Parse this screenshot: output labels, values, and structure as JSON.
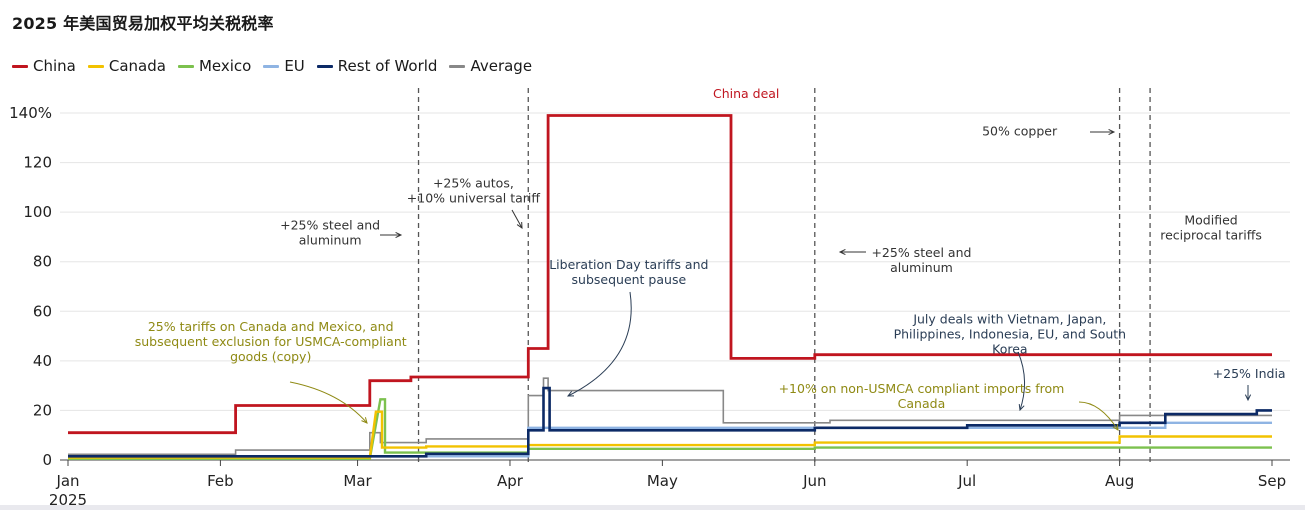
{
  "title": "2025 年美国贸易加权平均关税税率",
  "colors": {
    "china": "#c0151f",
    "canada": "#f2c200",
    "mexico": "#7cc14e",
    "eu": "#8fb4e3",
    "rest": "#0c2a66",
    "average": "#888888",
    "annotation_dark": "#2a3d55",
    "annotation_olive": "#8f8a14",
    "annotation_gray": "#333333",
    "grid": "#e5e5e5"
  },
  "legend": [
    {
      "label": "China",
      "color": "#c0151f"
    },
    {
      "label": "Canada",
      "color": "#f2c200"
    },
    {
      "label": "Mexico",
      "color": "#7cc14e"
    },
    {
      "label": "EU",
      "color": "#8fb4e3"
    },
    {
      "label": "Rest of World",
      "color": "#0c2a66"
    },
    {
      "label": "Average",
      "color": "#888888"
    }
  ],
  "chart_data": {
    "type": "line",
    "step": true,
    "title": "2025 年美国贸易加权平均关税税率",
    "xlabel": "",
    "ylabel": "",
    "xlim": [
      0,
      7.9
    ],
    "ylim": [
      0,
      140
    ],
    "x_unit": "months since Jan 1, 2025",
    "x_ticks": [
      {
        "value": 0,
        "label": "Jan",
        "sublabel": "2025"
      },
      {
        "value": 1,
        "label": "Feb"
      },
      {
        "value": 1.9,
        "label": "Mar"
      },
      {
        "value": 2.9,
        "label": "Apr"
      },
      {
        "value": 3.9,
        "label": "May"
      },
      {
        "value": 4.9,
        "label": "Jun"
      },
      {
        "value": 5.9,
        "label": "Jul"
      },
      {
        "value": 6.9,
        "label": "Aug"
      },
      {
        "value": 7.9,
        "label": "Sep"
      }
    ],
    "y_ticks": [
      {
        "value": 0,
        "label": "0"
      },
      {
        "value": 20,
        "label": "20"
      },
      {
        "value": 40,
        "label": "40"
      },
      {
        "value": 60,
        "label": "60"
      },
      {
        "value": 80,
        "label": "80"
      },
      {
        "value": 100,
        "label": "100"
      },
      {
        "value": 120,
        "label": "120"
      },
      {
        "value": 140,
        "label": "140%"
      }
    ],
    "grid": true,
    "series": [
      {
        "name": "Average",
        "key": "average",
        "width": 1.6,
        "points": [
          [
            0,
            2.3
          ],
          [
            1.1,
            2.3
          ],
          [
            1.1,
            4
          ],
          [
            1.98,
            4
          ],
          [
            1.98,
            11
          ],
          [
            2.05,
            11
          ],
          [
            2.05,
            7
          ],
          [
            2.35,
            7
          ],
          [
            2.35,
            8.5
          ],
          [
            3.02,
            8.5
          ],
          [
            3.02,
            26
          ],
          [
            3.12,
            26
          ],
          [
            3.12,
            33
          ],
          [
            3.15,
            33
          ],
          [
            3.15,
            28
          ],
          [
            4.3,
            28
          ],
          [
            4.3,
            15
          ],
          [
            5.0,
            15
          ],
          [
            5.0,
            16
          ],
          [
            6.9,
            16
          ],
          [
            6.9,
            18
          ],
          [
            7.9,
            18
          ]
        ]
      },
      {
        "name": "EU",
        "key": "eu",
        "width": 2.4,
        "points": [
          [
            0,
            1.5
          ],
          [
            3.02,
            1.5
          ],
          [
            3.02,
            13
          ],
          [
            7.2,
            13
          ],
          [
            7.2,
            15
          ],
          [
            7.9,
            15
          ]
        ]
      },
      {
        "name": "Mexico",
        "key": "mexico",
        "width": 2.4,
        "points": [
          [
            0,
            0.5
          ],
          [
            1.98,
            0.5
          ],
          [
            2.05,
            24.5
          ],
          [
            2.08,
            24.5
          ],
          [
            2.08,
            3
          ],
          [
            3.02,
            3
          ],
          [
            3.02,
            4.5
          ],
          [
            4.9,
            4.5
          ],
          [
            4.9,
            5
          ],
          [
            7.9,
            5
          ]
        ]
      },
      {
        "name": "Canada",
        "key": "canada",
        "width": 2.4,
        "points": [
          [
            0,
            1
          ],
          [
            1.98,
            1
          ],
          [
            2.02,
            19.5
          ],
          [
            2.06,
            19.5
          ],
          [
            2.06,
            5
          ],
          [
            2.35,
            5
          ],
          [
            2.35,
            5.5
          ],
          [
            3.02,
            5.5
          ],
          [
            3.02,
            6
          ],
          [
            4.9,
            6
          ],
          [
            4.9,
            7
          ],
          [
            6.9,
            7
          ],
          [
            6.9,
            9.5
          ],
          [
            7.9,
            9.5
          ]
        ]
      },
      {
        "name": "Rest of World",
        "key": "rest",
        "width": 2.6,
        "points": [
          [
            0,
            1.5
          ],
          [
            2.35,
            1.5
          ],
          [
            2.35,
            2.5
          ],
          [
            3.02,
            2.5
          ],
          [
            3.02,
            12
          ],
          [
            3.12,
            12
          ],
          [
            3.12,
            29
          ],
          [
            3.16,
            29
          ],
          [
            3.16,
            12
          ],
          [
            4.9,
            12
          ],
          [
            4.9,
            13
          ],
          [
            5.9,
            13
          ],
          [
            5.9,
            14
          ],
          [
            6.9,
            14
          ],
          [
            6.9,
            15
          ],
          [
            7.2,
            15
          ],
          [
            7.2,
            18.5
          ],
          [
            7.8,
            18.5
          ],
          [
            7.8,
            20
          ],
          [
            7.9,
            20
          ]
        ]
      },
      {
        "name": "China",
        "key": "china",
        "width": 2.8,
        "points": [
          [
            0,
            11
          ],
          [
            1.1,
            11
          ],
          [
            1.1,
            22
          ],
          [
            1.98,
            22
          ],
          [
            1.98,
            32
          ],
          [
            2.25,
            32
          ],
          [
            2.25,
            33.5
          ],
          [
            3.02,
            33.5
          ],
          [
            3.02,
            45
          ],
          [
            3.15,
            45
          ],
          [
            3.15,
            139
          ],
          [
            4.35,
            139
          ],
          [
            4.35,
            41
          ],
          [
            4.9,
            41
          ],
          [
            4.9,
            42.5
          ],
          [
            7.9,
            42.5
          ]
        ]
      }
    ],
    "vlines": [
      2.3,
      3.02,
      4.9,
      6.9,
      7.1
    ],
    "annotations": [
      {
        "id": "china-deal",
        "lines": [
          "China deal"
        ],
        "style": "red",
        "anchor": "middle",
        "x": 4.45,
        "y": 146
      },
      {
        "id": "copper",
        "lines": [
          "50% copper"
        ],
        "style": "gray",
        "anchor": "end",
        "x": 6.49,
        "y": 131
      },
      {
        "id": "autos",
        "lines": [
          "+25% autos,",
          "+10% universal tariff"
        ],
        "style": "gray",
        "anchor": "middle",
        "x": 2.66,
        "y": 110
      },
      {
        "id": "steel1",
        "lines": [
          "+25% steel and",
          "aluminum"
        ],
        "style": "gray",
        "anchor": "middle",
        "x": 1.72,
        "y": 93
      },
      {
        "id": "modified",
        "lines": [
          "Modified",
          "reciprocal tariffs"
        ],
        "style": "gray",
        "anchor": "middle",
        "x": 7.5,
        "y": 95
      },
      {
        "id": "steel2",
        "lines": [
          "+25% steel and",
          "aluminum"
        ],
        "style": "gray",
        "anchor": "middle",
        "x": 5.6,
        "y": 82
      },
      {
        "id": "liberation",
        "lines": [
          "Liberation Day tariffs and",
          "subsequent pause"
        ],
        "style": "dark",
        "anchor": "middle",
        "x": 3.68,
        "y": 77
      },
      {
        "id": "july",
        "lines": [
          "July deals with Vietnam, Japan,",
          "Philippines, Indonesia, EU, and South",
          "Korea"
        ],
        "style": "dark",
        "anchor": "middle",
        "x": 6.18,
        "y": 55
      },
      {
        "id": "usmca",
        "lines": [
          "25% tariffs on Canada and Mexico, and",
          "subsequent exclusion for USMCA-compliant",
          "goods (copy)"
        ],
        "style": "olive",
        "anchor": "middle",
        "x": 1.33,
        "y": 52
      },
      {
        "id": "non-usmca",
        "lines": [
          "+10% on non-USMCA compliant imports from",
          "Canada"
        ],
        "style": "olive",
        "anchor": "middle",
        "x": 5.6,
        "y": 27
      },
      {
        "id": "india",
        "lines": [
          "+25% India"
        ],
        "style": "dark",
        "anchor": "middle",
        "x": 7.75,
        "y": 33
      }
    ]
  }
}
